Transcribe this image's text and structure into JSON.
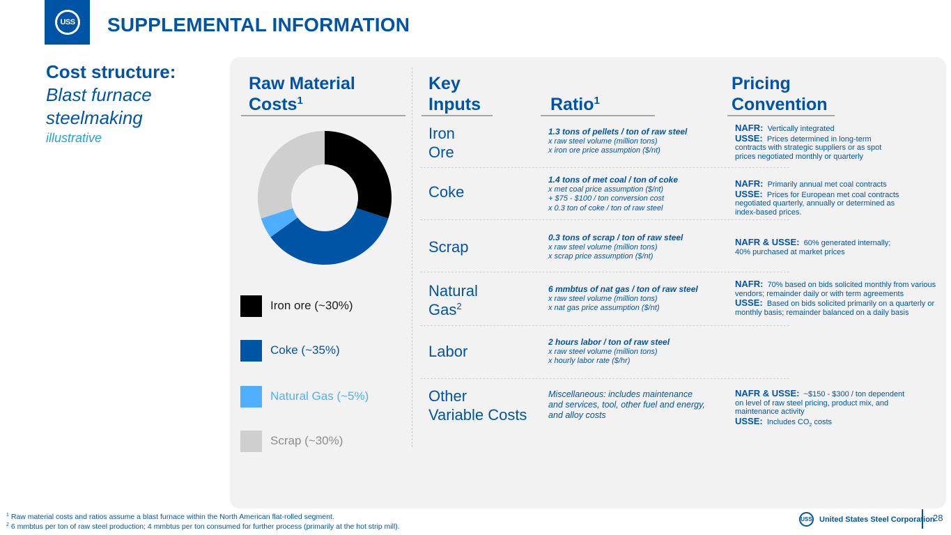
{
  "header": {
    "logo_text": "USS",
    "title": "SUPPLEMENTAL INFORMATION"
  },
  "left": {
    "heading": "Cost structure:",
    "subheading_line1": "Blast furnace",
    "subheading_line2": "steelmaking",
    "note": "illustrative"
  },
  "columns": {
    "raw_material_line1": "Raw Material",
    "raw_material_line2": "Costs",
    "raw_material_sup": "1",
    "key_inputs_line1": "Key",
    "key_inputs_line2": "Inputs",
    "ratio": "Ratio",
    "ratio_sup": "1",
    "pricing_line1": "Pricing",
    "pricing_line2": "Convention"
  },
  "chart_data": {
    "type": "pie",
    "variant": "donut",
    "categories": [
      "Iron ore",
      "Coke",
      "Natural Gas",
      "Scrap"
    ],
    "values": [
      30,
      35,
      5,
      30
    ],
    "colors": [
      "#000000",
      "#0054a6",
      "#4faeff",
      "#cfcfcf"
    ],
    "legend": [
      "Iron ore (~30%)",
      "Coke (~35%)",
      "Natural Gas (~5%)",
      "Scrap (~30%)"
    ],
    "legend_colors": [
      "#1a1a1a",
      "#0054a6",
      "#4faeff",
      "#8c8c8c"
    ]
  },
  "rows": [
    {
      "input_line1": "Iron",
      "input_line2": "Ore",
      "ratio_lead": "1.3 tons of pellets / ton of raw steel",
      "ratio_lines": [
        "x raw steel volume (million tons)",
        "x iron ore price assumption ($/nt)"
      ],
      "pricing": [
        {
          "key": "NAFR:",
          "text": "Vertically integrated"
        },
        {
          "key": "USSE:",
          "text": "Prices determined in long-term contracts with strategic suppliers or as spot prices negotiated monthly or quarterly"
        }
      ]
    },
    {
      "input_line1": "Coke",
      "ratio_lead": "1.4 tons of met coal / ton of coke",
      "ratio_lines": [
        "x met coal price assumption ($/nt)",
        "+ $75 - $100 / ton conversion cost",
        "x 0.3 ton of coke / ton of raw steel"
      ],
      "pricing": [
        {
          "key": "NAFR:",
          "text": "Primarily annual met coal contracts"
        },
        {
          "key": "USSE:",
          "text": "Prices for European met coal contracts negotiated quarterly, annually or determined as index-based prices."
        }
      ]
    },
    {
      "input_line1": "Scrap",
      "ratio_lead": "0.3 tons of scrap / ton of raw steel",
      "ratio_lines": [
        "x raw steel volume (million tons)",
        "x scrap price assumption ($/nt)"
      ],
      "pricing": [
        {
          "key": "NAFR & USSE:",
          "text": "60% generated internally; 40% purchased at market prices"
        }
      ]
    },
    {
      "input_line1": "Natural",
      "input_line2": "Gas",
      "input_sup": "2",
      "ratio_lead": "6 mmbtus of nat gas / ton of raw steel",
      "ratio_lines": [
        "x raw steel volume (million tons)",
        "x nat gas price assumption ($/nt)"
      ],
      "pricing": [
        {
          "key": "NAFR:",
          "text": "70% based on bids solicited monthly from various vendors; remainder daily or with term agreements"
        },
        {
          "key": "USSE:",
          "text": "Based on bids solicited primarily on a quarterly or monthly basis; remainder balanced on a daily basis"
        }
      ]
    },
    {
      "input_line1": "Labor",
      "ratio_lead": "2 hours labor / ton of raw steel",
      "ratio_lines": [
        "x raw steel volume (million tons)",
        "x hourly labor rate ($/hr)"
      ],
      "pricing": []
    },
    {
      "input_line1": "Other",
      "input_line2": "Variable Costs",
      "ratio_plain": "Miscellaneous:  includes maintenance and services, tool, other fuel and energy, and alloy costs",
      "pricing": [
        {
          "key": "NAFR & USSE:",
          "text": "~$150 - $300 / ton dependent on level of raw steel pricing, product mix, and maintenance activity"
        },
        {
          "key": "USSE:",
          "text": "Includes CO",
          "sub": "2",
          "after": " costs"
        }
      ]
    }
  ],
  "footer": {
    "note1_mark": "1",
    "note1": " Raw material costs and ratios assume a blast furnace within the North American flat-rolled segment.",
    "note2_mark": "2",
    "note2": " 6 mmbtus per ton of raw steel production; 4 mmbtus per ton consumed for further process (primarily at the hot strip mill).",
    "brand_mark": "USS",
    "brand": "United States Steel Corporation",
    "page": "28"
  }
}
